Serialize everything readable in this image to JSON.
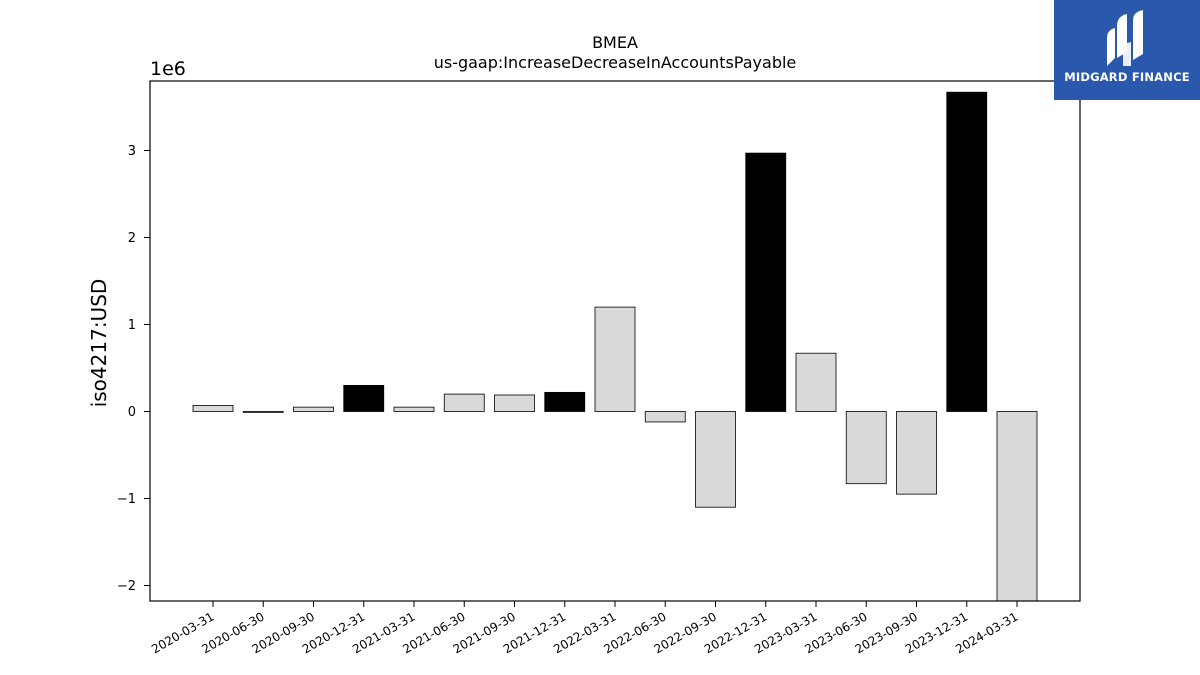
{
  "chart_data": {
    "type": "bar",
    "title": "BMEA",
    "subtitle": "us-gaap:IncreaseDecreaseInAccountsPayable",
    "xlabel": "",
    "ylabel": "iso4217:USD",
    "y_multiplier_label": "1e6",
    "ylim": [
      -2.18,
      3.8
    ],
    "yticks": [
      -2,
      -1,
      0,
      1,
      2,
      3
    ],
    "ytick_labels": [
      "−2",
      "−1",
      "0",
      "1",
      "2",
      "3"
    ],
    "grid": false,
    "categories": [
      "2020-03-31",
      "2020-06-30",
      "2020-09-30",
      "2020-12-31",
      "2021-03-31",
      "2021-06-30",
      "2021-09-30",
      "2021-12-31",
      "2022-03-31",
      "2022-06-30",
      "2022-09-30",
      "2022-12-31",
      "2023-03-31",
      "2023-06-30",
      "2023-09-30",
      "2023-12-31",
      "2024-03-31"
    ],
    "values": [
      0.07,
      -0.01,
      0.05,
      0.3,
      0.05,
      0.2,
      0.19,
      0.22,
      1.2,
      -0.12,
      -1.1,
      2.97,
      0.67,
      -0.83,
      -0.95,
      3.67,
      -2.18
    ],
    "bar_colors": [
      "#d9d9d9",
      "#d9d9d9",
      "#d9d9d9",
      "#000000",
      "#d9d9d9",
      "#d9d9d9",
      "#d9d9d9",
      "#000000",
      "#d9d9d9",
      "#d9d9d9",
      "#d9d9d9",
      "#000000",
      "#d9d9d9",
      "#d9d9d9",
      "#d9d9d9",
      "#000000",
      "#d9d9d9"
    ]
  },
  "logo": {
    "text": "MIDGARD FINANCE",
    "background": "#2a58ad"
  }
}
